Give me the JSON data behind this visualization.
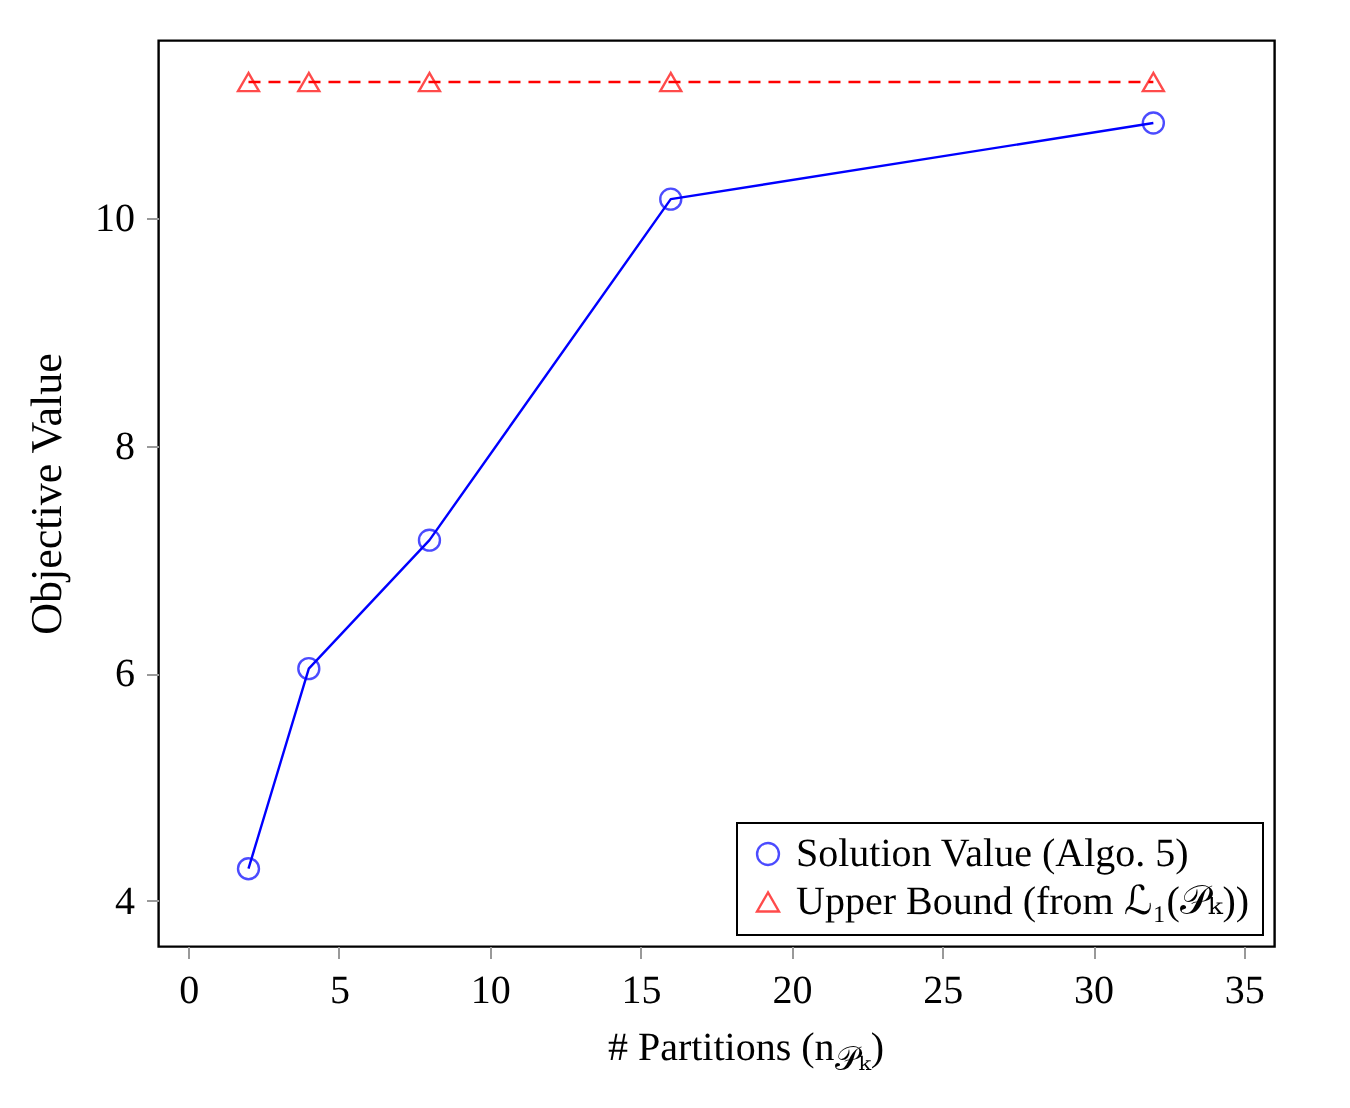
{
  "chart_data": {
    "type": "line",
    "xlabel": "# Partitions (n$_{𝒫ₖ}$)",
    "ylabel": "Objective Value",
    "x": [
      2,
      4,
      8,
      16,
      32
    ],
    "series": [
      {
        "name": "Solution Value (Algo. 5)",
        "color": "#0000ff",
        "marker": "circle",
        "line_style": "solid",
        "values": [
          4.28,
          6.04,
          7.17,
          10.17,
          10.84
        ]
      },
      {
        "name": "Upper Bound (from ℒ₁(𝒫ₖ))",
        "color": "#ff0000",
        "marker": "triangle",
        "line_style": "dashed",
        "values": [
          11.2,
          11.2,
          11.2,
          11.2,
          11.2
        ]
      }
    ],
    "xlim": [
      -1,
      36
    ],
    "xticks": [
      0,
      5,
      10,
      15,
      20,
      25,
      30,
      35
    ],
    "ylim": [
      3.6,
      11.57
    ],
    "yticks": [
      4,
      6,
      8,
      10
    ],
    "grid": false,
    "legend": "bottom right"
  }
}
